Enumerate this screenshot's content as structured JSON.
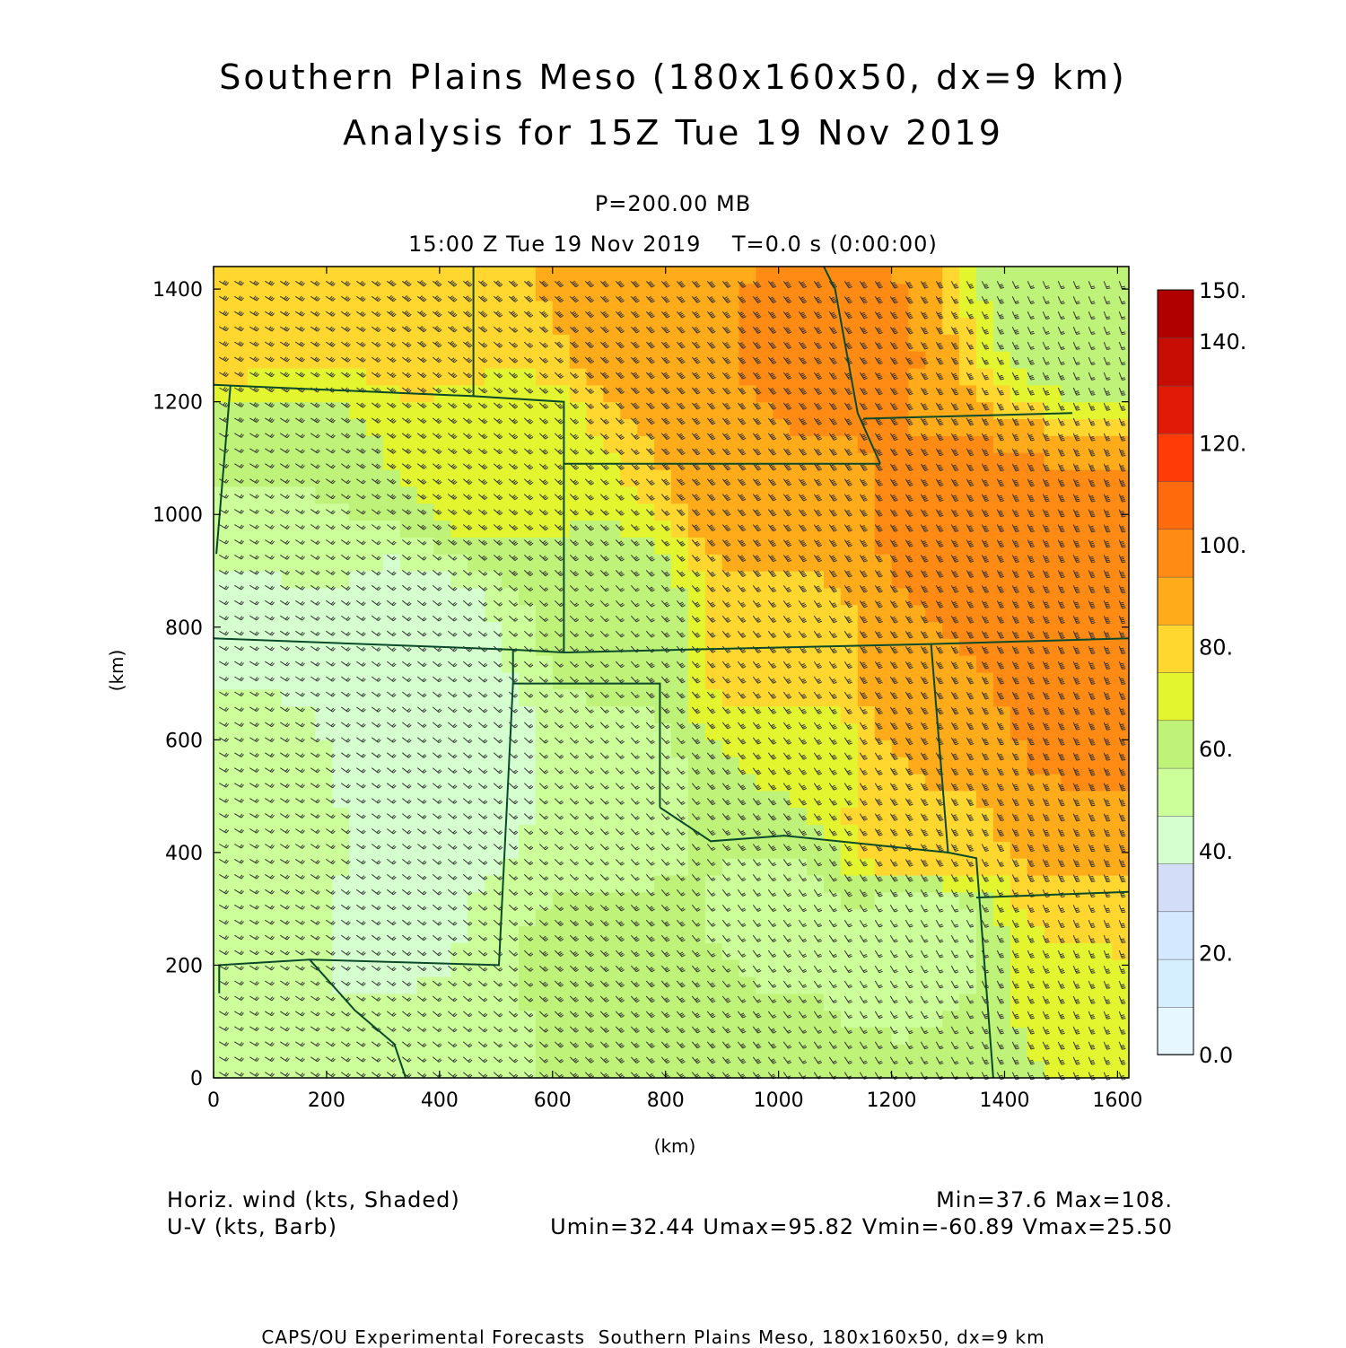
{
  "title_line1": "Southern Plains Meso (180x160x50, dx=9 km)",
  "title_line2": "Analysis for 15Z Tue 19 Nov 2019",
  "level_label": "P=200.00 MB",
  "time_label": "15:00 Z Tue 19 Nov 2019    T=0.0 s (0:00:00)",
  "legend_left_1": "Horiz. wind (kts, Shaded)",
  "legend_left_2": "U-V (kts, Barb)",
  "stats_1": "Min=37.6 Max=108.",
  "stats_2": "Umin=32.44 Umax=95.82 Vmin=-60.89 Vmax=25.50",
  "footer": "CAPS/OU Experimental Forecasts  Southern Plains Meso, 180x160x50, dx=9 km",
  "chart_data": {
    "type": "heatmap",
    "xlabel": "(km)",
    "ylabel": "(km)",
    "xlim": [
      0,
      1620
    ],
    "ylim": [
      0,
      1440
    ],
    "x_ticks": [
      "0",
      "200",
      "400",
      "600",
      "800",
      "1000",
      "1200",
      "1400",
      "1600"
    ],
    "y_ticks": [
      "0",
      "200",
      "400",
      "600",
      "800",
      "1000",
      "1200",
      "1400"
    ],
    "colorbar": {
      "levels": [
        0,
        10,
        20,
        30,
        40,
        50,
        60,
        70,
        80,
        90,
        100,
        110,
        120,
        130,
        140,
        150
      ],
      "tick_labels": [
        "0.0",
        "20.",
        "40.",
        "60.",
        "80.",
        "100.",
        "120.",
        "140.",
        "150."
      ],
      "colors": [
        "#e6f7ff",
        "#d6efff",
        "#d4e8ff",
        "#d4ddf7",
        "#d6ffd0",
        "#ccff99",
        "#bff279",
        "#e2f52e",
        "#ffd72e",
        "#ffab1a",
        "#ff8a14",
        "#ff6a0d",
        "#ff3c08",
        "#e01a06",
        "#c80e04",
        "#b00000"
      ]
    },
    "wind_speed_kts": {
      "min": 37.6,
      "max": 108
    },
    "u_kts": {
      "min": 32.44,
      "max": 95.82
    },
    "v_kts": {
      "min": -60.89,
      "max": 25.5
    },
    "field_samples": [
      {
        "x": 50,
        "y": 1380,
        "speed": 85
      },
      {
        "x": 400,
        "y": 1380,
        "speed": 88
      },
      {
        "x": 800,
        "y": 1380,
        "speed": 100
      },
      {
        "x": 1100,
        "y": 1300,
        "speed": 102
      },
      {
        "x": 1550,
        "y": 1380,
        "speed": 60
      },
      {
        "x": 100,
        "y": 1050,
        "speed": 60
      },
      {
        "x": 500,
        "y": 1100,
        "speed": 75
      },
      {
        "x": 1000,
        "y": 1050,
        "speed": 100
      },
      {
        "x": 1350,
        "y": 950,
        "speed": 105
      },
      {
        "x": 1550,
        "y": 900,
        "speed": 104
      },
      {
        "x": 50,
        "y": 800,
        "speed": 48
      },
      {
        "x": 350,
        "y": 750,
        "speed": 42
      },
      {
        "x": 700,
        "y": 800,
        "speed": 62
      },
      {
        "x": 1000,
        "y": 750,
        "speed": 85
      },
      {
        "x": 1300,
        "y": 700,
        "speed": 100
      },
      {
        "x": 1550,
        "y": 650,
        "speed": 104
      },
      {
        "x": 50,
        "y": 500,
        "speed": 58
      },
      {
        "x": 400,
        "y": 550,
        "speed": 40
      },
      {
        "x": 700,
        "y": 500,
        "speed": 52
      },
      {
        "x": 1000,
        "y": 550,
        "speed": 70
      },
      {
        "x": 1250,
        "y": 450,
        "speed": 90
      },
      {
        "x": 1550,
        "y": 450,
        "speed": 100
      },
      {
        "x": 50,
        "y": 250,
        "speed": 56
      },
      {
        "x": 300,
        "y": 250,
        "speed": 48
      },
      {
        "x": 700,
        "y": 200,
        "speed": 65
      },
      {
        "x": 1000,
        "y": 300,
        "speed": 58
      },
      {
        "x": 1250,
        "y": 250,
        "speed": 55
      },
      {
        "x": 1550,
        "y": 250,
        "speed": 80
      },
      {
        "x": 50,
        "y": 30,
        "speed": 58
      },
      {
        "x": 400,
        "y": 30,
        "speed": 55
      },
      {
        "x": 800,
        "y": 30,
        "speed": 66
      },
      {
        "x": 1200,
        "y": 30,
        "speed": 60
      },
      {
        "x": 1550,
        "y": 30,
        "speed": 70
      }
    ]
  }
}
